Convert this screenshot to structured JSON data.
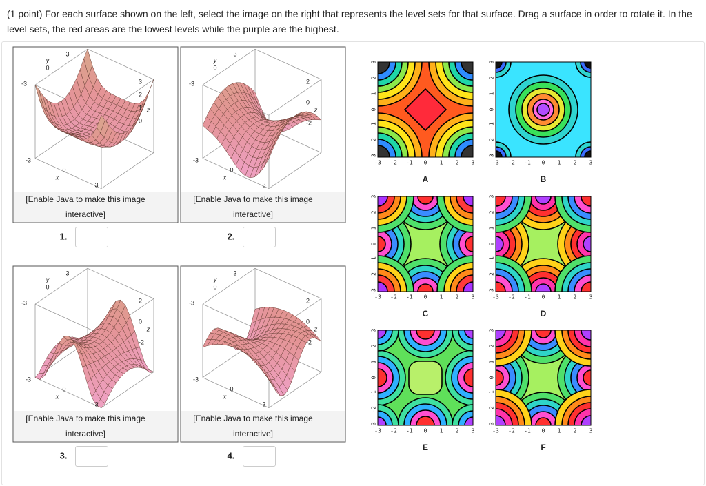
{
  "prompt": "(1 point) For each surface shown on the left, select the image on the right that represents the level sets for that surface. Drag a surface in order to rotate it. In the level sets, the red areas are the lowest levels while the purple are the highest.",
  "surfaces": [
    {
      "number": "1.",
      "caption": [
        "[Enable Java to make this image",
        "interactive]"
      ],
      "axes": {
        "y": "y",
        "y0": "0",
        "y3": "3",
        "left": "-3",
        "lower": "-3",
        "x0": "0",
        "x": "x",
        "x3": "3",
        "z": "z",
        "zticks": [
          "3",
          "2",
          "1",
          "0"
        ]
      }
    },
    {
      "number": "2.",
      "caption": [
        "[Enable Java to make this image",
        "interactive]"
      ],
      "axes": {
        "y": "y",
        "y0": "0",
        "y3": "3",
        "left": "-3",
        "lower": "-3",
        "x0": "0",
        "x": "x",
        "x3": "3",
        "z": "z",
        "zticks": [
          "2",
          "0",
          "-2"
        ]
      }
    },
    {
      "number": "3.",
      "caption": [
        "[Enable Java to make this image",
        "interactive]"
      ],
      "axes": {
        "y": "y",
        "y0": "0",
        "y3": "3",
        "left": "-3",
        "lower": "-3",
        "x0": "0",
        "x": "x",
        "x3": "3",
        "z": "z",
        "zticks": [
          "2",
          "0",
          "-2"
        ]
      }
    },
    {
      "number": "4.",
      "caption": [
        "[Enable Java to make this image",
        "interactive]"
      ],
      "axes": {
        "y": "y",
        "y0": "0",
        "y3": "3",
        "left": "-3",
        "lower": "-3",
        "x0": "0",
        "x": "x",
        "x3": "3",
        "z": "z",
        "zticks": [
          "2",
          "0",
          "-2"
        ]
      }
    }
  ],
  "level_sets": [
    {
      "letter": "A"
    },
    {
      "letter": "B"
    },
    {
      "letter": "C"
    },
    {
      "letter": "D"
    },
    {
      "letter": "E"
    },
    {
      "letter": "F"
    }
  ],
  "level_set_ticks": [
    "-3",
    "-2",
    "-1",
    "0",
    "1",
    "2",
    "3"
  ]
}
